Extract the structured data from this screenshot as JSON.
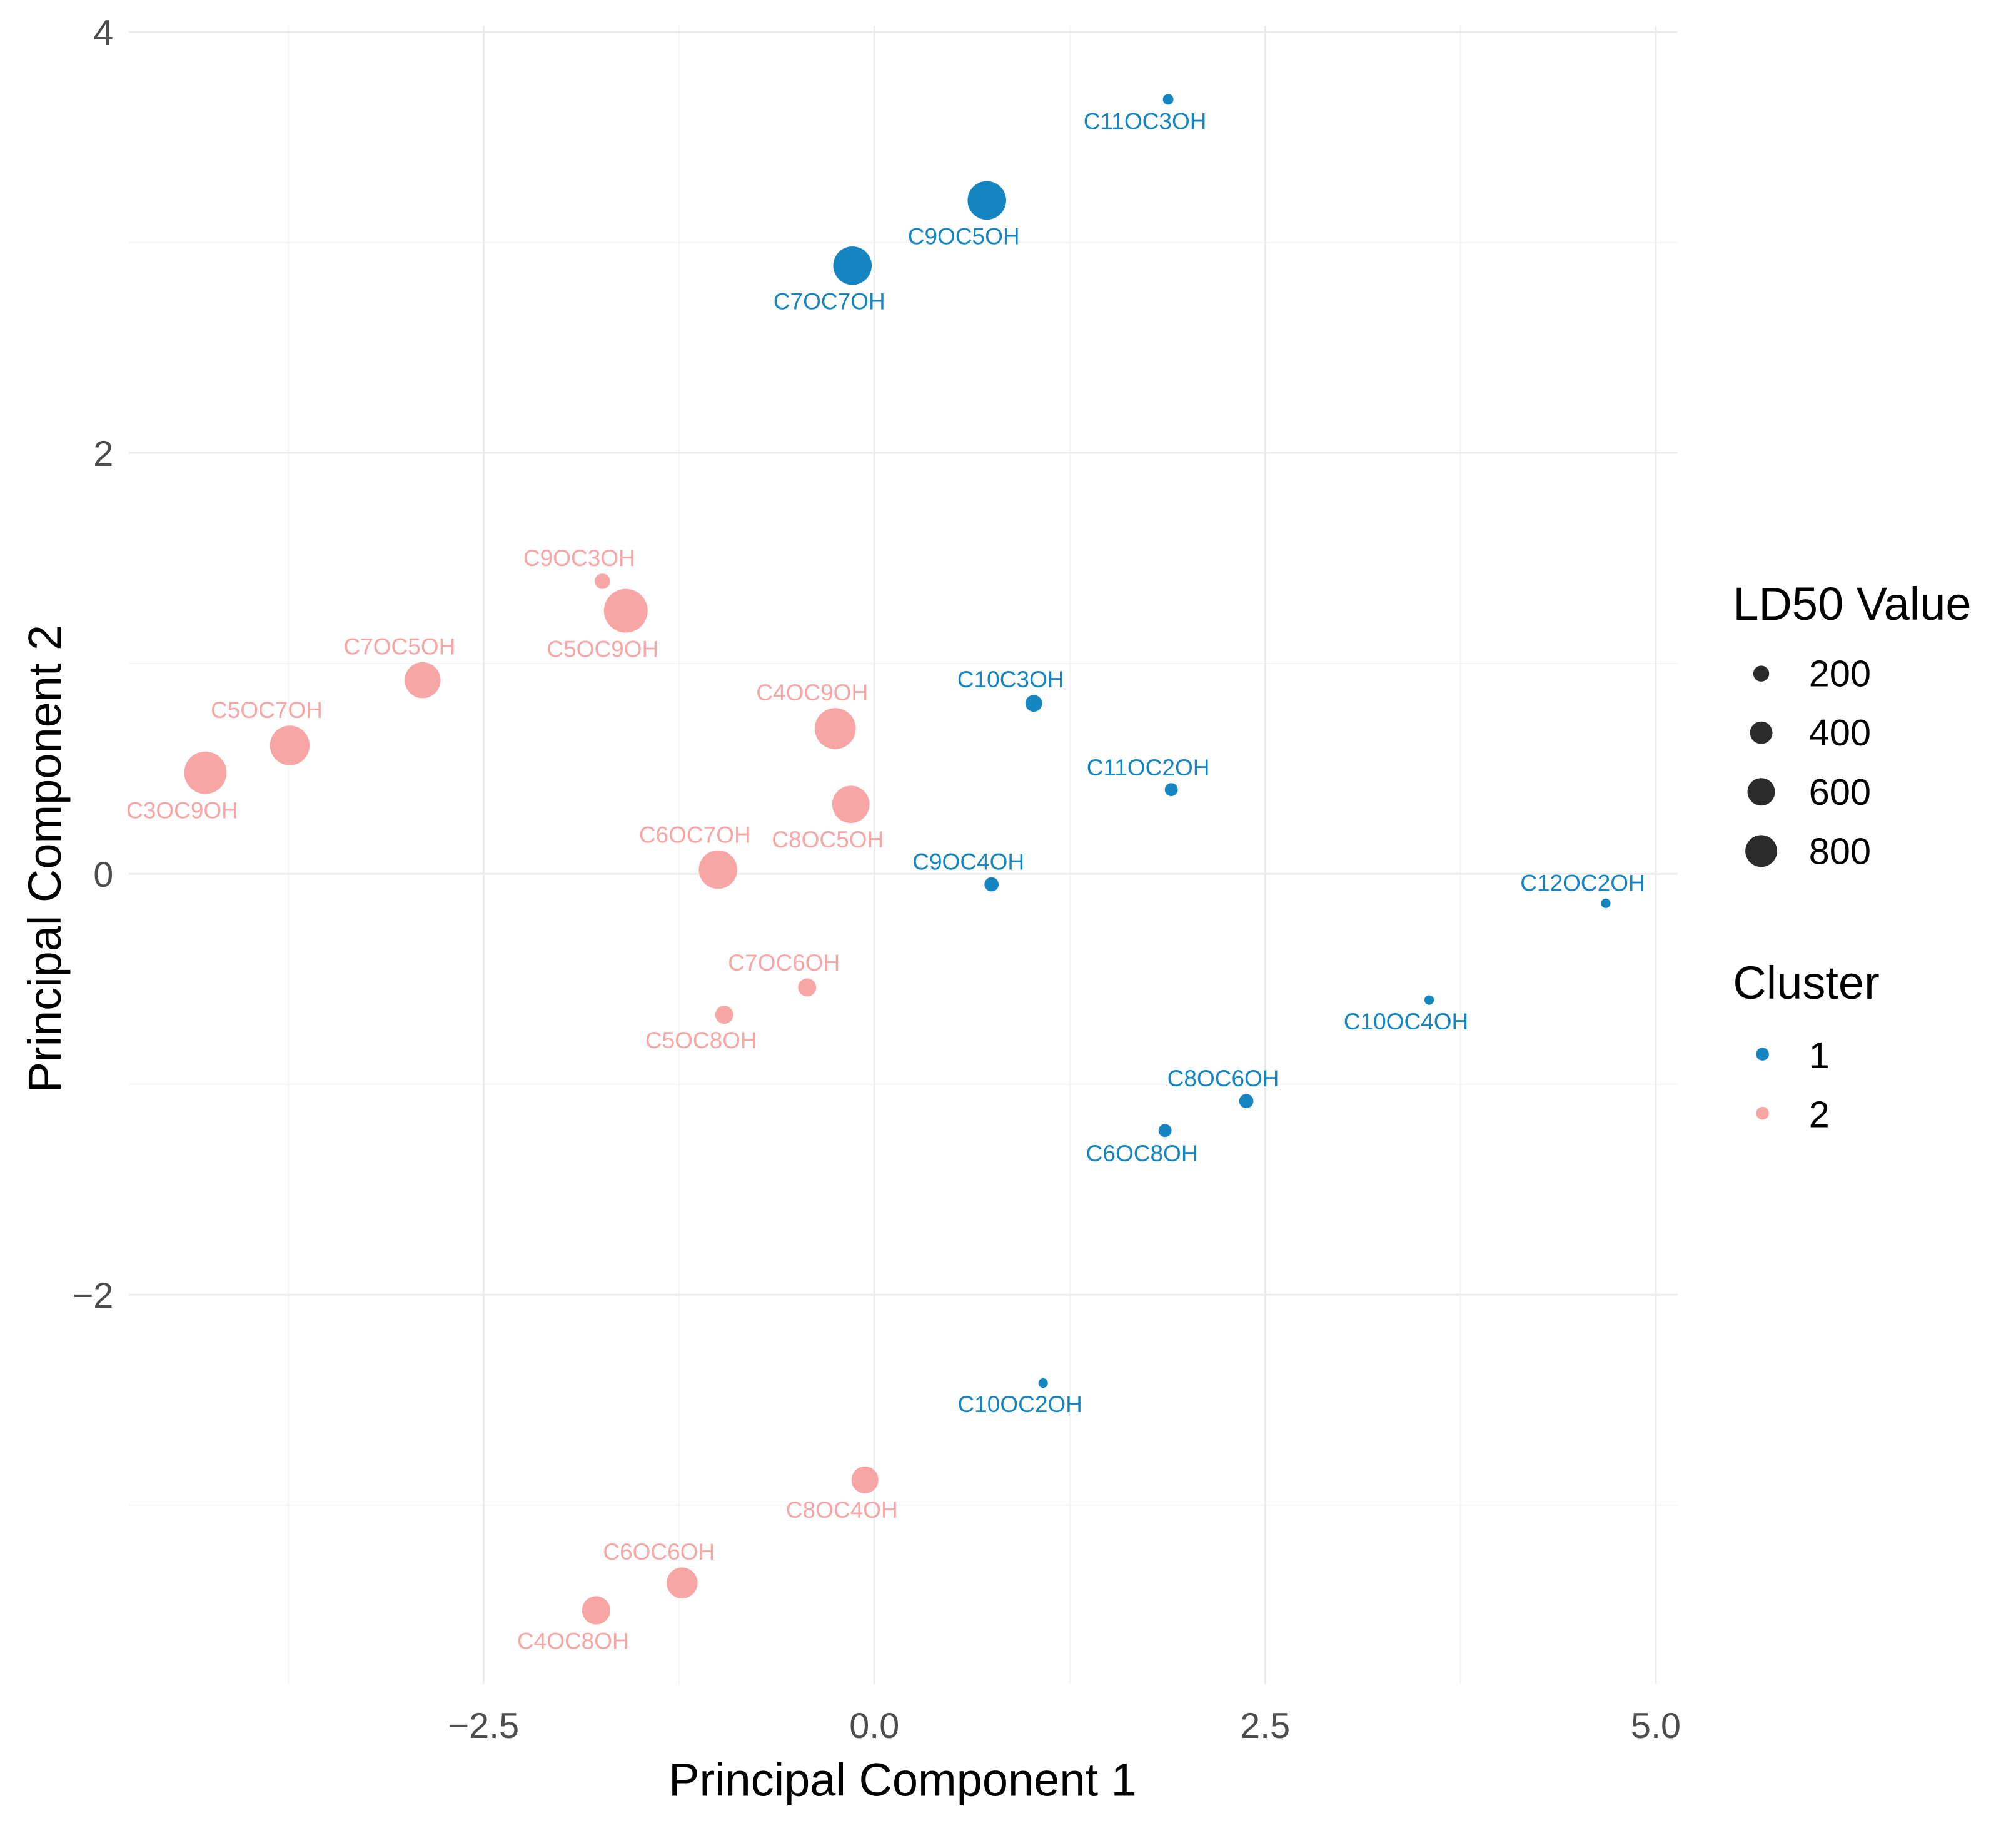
{
  "chart_data": {
    "type": "scatter",
    "title": "",
    "xlabel": "Principal Component 1",
    "ylabel": "Principal Component 2",
    "xlim": [
      -4.77,
      5.14
    ],
    "ylim": [
      -3.85,
      4.03
    ],
    "x_ticks": [
      -2.5,
      0.0,
      2.5,
      5.0
    ],
    "x_tick_labels": [
      "−2.5",
      "0.0",
      "2.5",
      "5.0"
    ],
    "y_ticks": [
      -2,
      0,
      2,
      4
    ],
    "y_tick_labels": [
      "−2",
      "0",
      "2",
      "4"
    ],
    "grid": true,
    "colors": {
      "1": "#1585c2",
      "2": "#f8a5a5"
    },
    "legend": {
      "placement": "right",
      "size_title": "LD50 Value",
      "size_entries": [
        {
          "value": 200,
          "label": "200"
        },
        {
          "value": 400,
          "label": "400"
        },
        {
          "value": 600,
          "label": "600"
        },
        {
          "value": 800,
          "label": "800"
        }
      ],
      "color_title": "Cluster",
      "color_entries": [
        {
          "cluster": "1",
          "label": "1"
        },
        {
          "cluster": "2",
          "label": "2"
        }
      ]
    },
    "points": [
      {
        "label": "C11OC3OH",
        "x": 1.88,
        "y": 3.68,
        "ld50": 50,
        "cluster": "1",
        "label_pos": "below"
      },
      {
        "label": "C9OC5OH",
        "x": 0.72,
        "y": 3.2,
        "ld50": 660,
        "cluster": "1",
        "label_pos": "below"
      },
      {
        "label": "C7OC7OH",
        "x": -0.14,
        "y": 2.89,
        "ld50": 660,
        "cluster": "1",
        "label_pos": "below"
      },
      {
        "label": "C10C3OH",
        "x": 1.02,
        "y": 0.81,
        "ld50": 125,
        "cluster": "1",
        "label_pos": "above"
      },
      {
        "label": "C11OC2OH",
        "x": 1.9,
        "y": 0.4,
        "ld50": 75,
        "cluster": "1",
        "label_pos": "above"
      },
      {
        "label": "C9OC4OH",
        "x": 0.75,
        "y": -0.05,
        "ld50": 90,
        "cluster": "1",
        "label_pos": "above"
      },
      {
        "label": "C12OC2OH",
        "x": 4.68,
        "y": -0.14,
        "ld50": 40,
        "cluster": "1",
        "label_pos": "above"
      },
      {
        "label": "C10OC4OH",
        "x": 3.55,
        "y": -0.6,
        "ld50": 40,
        "cluster": "1",
        "label_pos": "below"
      },
      {
        "label": "C8OC6OH",
        "x": 2.38,
        "y": -1.08,
        "ld50": 90,
        "cluster": "1",
        "label_pos": "above"
      },
      {
        "label": "C6OC8OH",
        "x": 1.86,
        "y": -1.22,
        "ld50": 75,
        "cluster": "1",
        "label_pos": "below"
      },
      {
        "label": "C10OC2OH",
        "x": 1.08,
        "y": -2.42,
        "ld50": 40,
        "cluster": "1",
        "label_pos": "below"
      },
      {
        "label": "C9OC3OH",
        "x": -1.74,
        "y": 1.39,
        "ld50": 105,
        "cluster": "2",
        "label_pos": "above"
      },
      {
        "label": "C5OC9OH",
        "x": -1.59,
        "y": 1.25,
        "ld50": 850,
        "cluster": "2",
        "label_pos": "below"
      },
      {
        "label": "C7OC5OH",
        "x": -2.89,
        "y": 0.92,
        "ld50": 575,
        "cluster": "2",
        "label_pos": "above"
      },
      {
        "label": "C5OC7OH",
        "x": -3.74,
        "y": 0.61,
        "ld50": 700,
        "cluster": "2",
        "label_pos": "above"
      },
      {
        "label": "C3OC9OH",
        "x": -4.28,
        "y": 0.48,
        "ld50": 800,
        "cluster": "2",
        "label_pos": "below"
      },
      {
        "label": "C4OC9OH",
        "x": -0.25,
        "y": 0.69,
        "ld50": 750,
        "cluster": "2",
        "label_pos": "above"
      },
      {
        "label": "C8OC5OH",
        "x": -0.15,
        "y": 0.33,
        "ld50": 620,
        "cluster": "2",
        "label_pos": "below"
      },
      {
        "label": "C6OC7OH",
        "x": -1.0,
        "y": 0.02,
        "ld50": 660,
        "cluster": "2",
        "label_pos": "above"
      },
      {
        "label": "C7OC6OH",
        "x": -0.43,
        "y": -0.54,
        "ld50": 145,
        "cluster": "2",
        "label_pos": "above"
      },
      {
        "label": "C5OC8OH",
        "x": -0.96,
        "y": -0.67,
        "ld50": 145,
        "cluster": "2",
        "label_pos": "below"
      },
      {
        "label": "C8OC4OH",
        "x": -0.06,
        "y": -2.88,
        "ld50": 325,
        "cluster": "2",
        "label_pos": "below"
      },
      {
        "label": "C6OC6OH",
        "x": -1.23,
        "y": -3.37,
        "ld50": 425,
        "cluster": "2",
        "label_pos": "above"
      },
      {
        "label": "C4OC8OH",
        "x": -1.78,
        "y": -3.5,
        "ld50": 355,
        "cluster": "2",
        "label_pos": "below"
      }
    ]
  }
}
